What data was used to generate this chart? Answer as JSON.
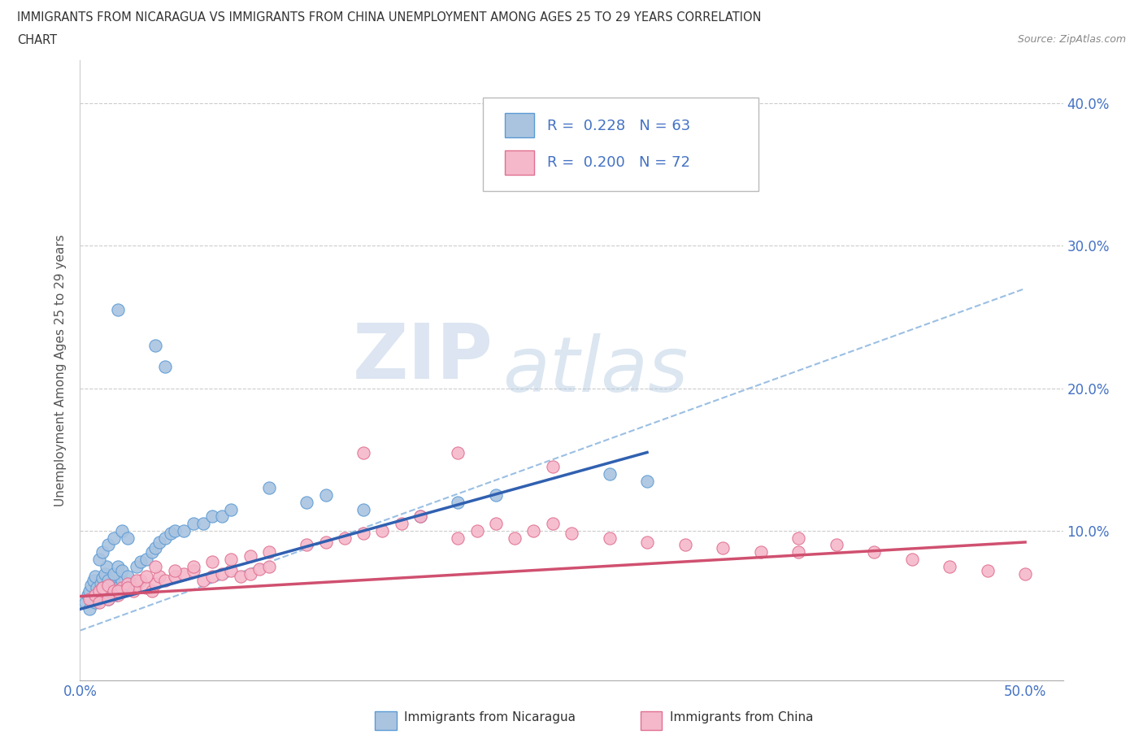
{
  "title_line1": "IMMIGRANTS FROM NICARAGUA VS IMMIGRANTS FROM CHINA UNEMPLOYMENT AMONG AGES 25 TO 29 YEARS CORRELATION",
  "title_line2": "CHART",
  "source": "Source: ZipAtlas.com",
  "ylabel": "Unemployment Among Ages 25 to 29 years",
  "xlim": [
    0.0,
    0.52
  ],
  "ylim": [
    -0.005,
    0.43
  ],
  "xticklabels_left": "0.0%",
  "xticklabels_right": "50.0%",
  "ytick_vals": [
    0.1,
    0.2,
    0.3,
    0.4
  ],
  "yticklabels": [
    "10.0%",
    "20.0%",
    "30.0%",
    "40.0%"
  ],
  "nicaragua_color": "#aac4e0",
  "china_color": "#f5b8cb",
  "nicaragua_edge": "#5b9bd5",
  "china_edge": "#e07090",
  "trend_nicaragua_color": "#3060b0",
  "trend_china_color": "#d05070",
  "trend_dashed_color": "#90b8e0",
  "R_nicaragua": 0.228,
  "N_nicaragua": 63,
  "R_china": 0.2,
  "N_china": 72,
  "legend_label_nicaragua": "Immigrants from Nicaragua",
  "legend_label_china": "Immigrants from China",
  "watermark_zip": "ZIP",
  "watermark_atlas": "atlas",
  "tick_label_color": "#4472c4",
  "axis_label_color": "#555555",
  "grid_color": "#cccccc",
  "title_color": "#333333",
  "nic_trend_x0": 0.0,
  "nic_trend_x1": 0.3,
  "nic_trend_y0": 0.045,
  "nic_trend_y1": 0.155,
  "china_trend_x0": 0.0,
  "china_trend_x1": 0.5,
  "china_trend_y0": 0.054,
  "china_trend_y1": 0.092,
  "dash_trend_x0": 0.0,
  "dash_trend_x1": 0.5,
  "dash_trend_y0": 0.03,
  "dash_trend_y1": 0.27
}
